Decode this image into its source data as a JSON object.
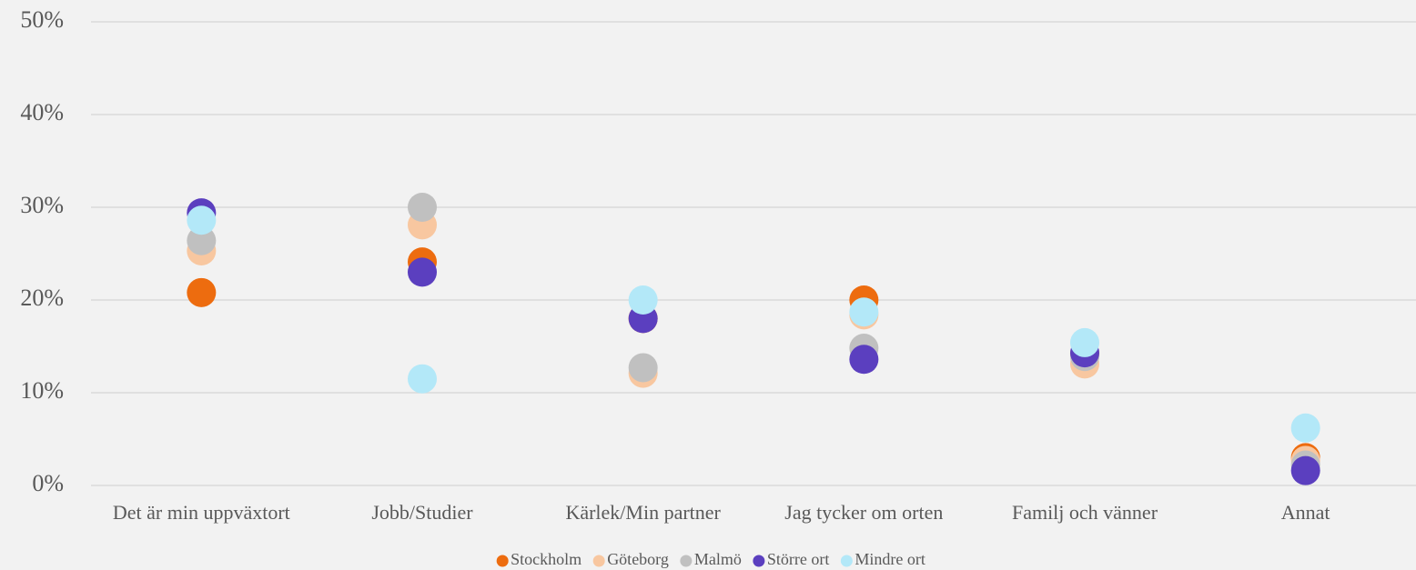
{
  "chart_data": {
    "type": "dot",
    "categories": [
      "Det är min uppväxtort",
      "Jobb/Studier",
      "Kärlek/Min partner",
      "Jag tycker om orten",
      "Familj och vänner",
      "Annat"
    ],
    "series": [
      {
        "name": "Stockholm",
        "color": "#ed6c0f",
        "values": [
          20.8,
          24.1,
          18.0,
          20.0,
          14.2,
          3.0
        ]
      },
      {
        "name": "Göteborg",
        "color": "#f8c7a0",
        "values": [
          25.3,
          28.1,
          12.1,
          18.4,
          13.1,
          2.7
        ]
      },
      {
        "name": "Malmö",
        "color": "#c0c0c0",
        "values": [
          26.4,
          30.0,
          12.7,
          14.8,
          13.9,
          2.2
        ]
      },
      {
        "name": "Större ort",
        "color": "#5b3fbf",
        "values": [
          29.4,
          23.0,
          18.0,
          13.6,
          14.3,
          1.6
        ]
      },
      {
        "name": "Mindre ort",
        "color": "#b3e8f8",
        "values": [
          28.6,
          11.5,
          20.0,
          18.7,
          15.4,
          6.2
        ]
      }
    ],
    "ylim": [
      0,
      50
    ],
    "yticks": [
      {
        "value": 0,
        "label": "0%"
      },
      {
        "value": 10,
        "label": "10%"
      },
      {
        "value": 20,
        "label": "20%"
      },
      {
        "value": 30,
        "label": "30%"
      },
      {
        "value": 40,
        "label": "40%"
      },
      {
        "value": 50,
        "label": "50%"
      }
    ],
    "grid": true,
    "legend": "bottom"
  }
}
